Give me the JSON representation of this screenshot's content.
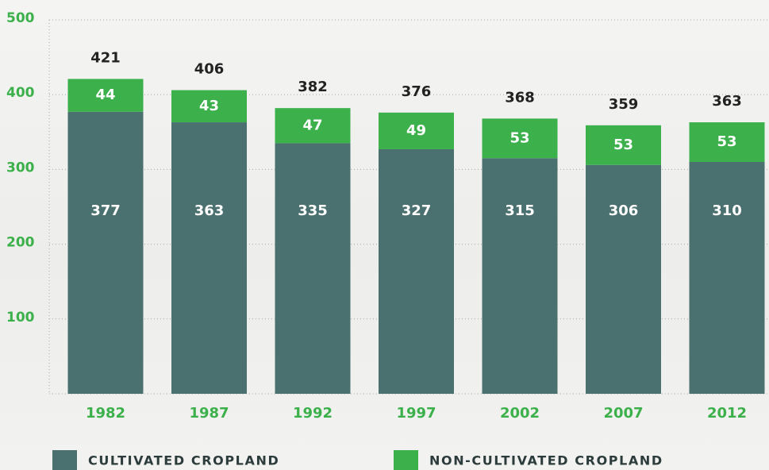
{
  "chart_data": {
    "type": "stacked-bar",
    "categories": [
      "1982",
      "1987",
      "1992",
      "1997",
      "2002",
      "2007",
      "2012"
    ],
    "series": [
      {
        "name": "CULTIVATED CROPLAND",
        "color": "#4b7070",
        "values": [
          377,
          363,
          335,
          327,
          315,
          306,
          310
        ]
      },
      {
        "name": "NON-CULTIVATED CROPLAND",
        "color": "#3cb04b",
        "values": [
          44,
          43,
          47,
          49,
          53,
          53,
          53
        ]
      }
    ],
    "totals": [
      421,
      406,
      382,
      376,
      368,
      359,
      363
    ],
    "ylim": [
      0,
      500
    ],
    "yticks": [
      100,
      200,
      300,
      400,
      500
    ],
    "grid": true
  }
}
